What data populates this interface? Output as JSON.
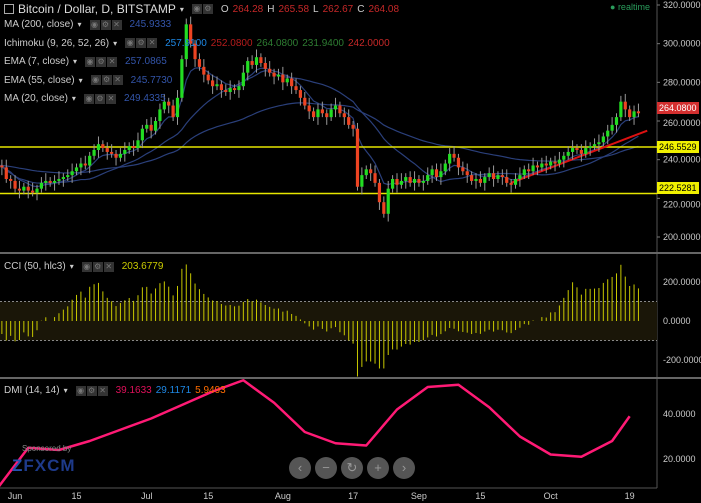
{
  "header": {
    "title": "Bitcoin / Dollar, D, BITSTAMP",
    "o_label": "O",
    "o": "264.28",
    "h_label": "H",
    "h": "265.58",
    "l_label": "L",
    "l": "262.67",
    "c_label": "C",
    "c": "264.08",
    "realtime": "realtime"
  },
  "indicators": [
    {
      "label": "MA (200, close)",
      "values": [
        "245.9333"
      ],
      "colors": [
        "#3355aa"
      ]
    },
    {
      "label": "Ichimoku (9, 26, 52, 26)",
      "values": [
        "257.9100",
        "252.0800",
        "264.0800",
        "231.9400",
        "242.0000"
      ],
      "colors": [
        "#1e88e5",
        "#b71c1c",
        "#2e7d32",
        "#2e7d32",
        "#c62828"
      ]
    },
    {
      "label": "EMA (7, close)",
      "values": [
        "257.0865"
      ],
      "colors": [
        "#3355aa"
      ]
    },
    {
      "label": "EMA (55, close)",
      "values": [
        "245.7730"
      ],
      "colors": [
        "#3355aa"
      ]
    },
    {
      "label": "MA (20, close)",
      "values": [
        "249.4335"
      ],
      "colors": [
        "#3355aa"
      ]
    }
  ],
  "cci": {
    "label": "CCI (50, hlc3)",
    "value": "203.6779",
    "color": "#cccc00"
  },
  "dmi": {
    "label": "DMI (14, 14)",
    "values": [
      "39.1633",
      "29.1171",
      "5.9493"
    ],
    "colors": [
      "#e0105a",
      "#1e88e5",
      "#ff6d00"
    ]
  },
  "price_tags": {
    "last": "264.0800",
    "resistance": "246.5529",
    "support": "222.5281"
  },
  "nav": {
    "prev": "‹",
    "zoom_out": "−",
    "reset": "↻",
    "zoom_in": "+",
    "next": "›"
  },
  "sponsor": {
    "text": "Sponsored by",
    "brand": "FXCM"
  },
  "chart_data": [
    {
      "type": "candlestick",
      "pane": "price",
      "xaxis_ticks": [
        "Jun",
        "15",
        "Jul",
        "15",
        "Aug",
        "17",
        "Sep",
        "15",
        "Oct",
        "19"
      ],
      "yaxis_ticks": [
        "320.0000",
        "300.0000",
        "280.0000",
        "260.0000",
        "240.0000",
        "220.0000",
        "200.0000"
      ],
      "ylim": [
        200,
        320
      ],
      "colors": {
        "up": "#22dd22",
        "down": "#ee4422",
        "levels": "#e6e600",
        "trend": "#dd1111",
        "ma": "#2a3f7a"
      },
      "horizontal_levels": [
        246.5529,
        222.5281
      ],
      "trendline": [
        [
          "Sep 22",
          228
        ],
        [
          "Oct 23",
          255
        ]
      ],
      "first_date": "May 28",
      "close": [
        237,
        236,
        230,
        229,
        225,
        224,
        226,
        224,
        223,
        225,
        228,
        229,
        228,
        229,
        230,
        231,
        232,
        234,
        236,
        238,
        237,
        242,
        245,
        248,
        246,
        244,
        243,
        241,
        243,
        245,
        247,
        246,
        250,
        256,
        258,
        255,
        260,
        266,
        270,
        268,
        262,
        272,
        292,
        310,
        300,
        292,
        288,
        284,
        281,
        278,
        279,
        276,
        275,
        277,
        276,
        278,
        285,
        291,
        289,
        293,
        290,
        287,
        285,
        283,
        284,
        280,
        282,
        278,
        276,
        272,
        268,
        265,
        262,
        266,
        264,
        262,
        266,
        268,
        264,
        262,
        258,
        256,
        226,
        232,
        235,
        233,
        228,
        218,
        212,
        225,
        230,
        227,
        229,
        231,
        228,
        230,
        228,
        229,
        232,
        235,
        231,
        234,
        238,
        243,
        241,
        236,
        234,
        232,
        229,
        230,
        228,
        231,
        233,
        230,
        232,
        231,
        228,
        227,
        230,
        232,
        235,
        234,
        237,
        236,
        238,
        237,
        239,
        238,
        240,
        242,
        244,
        246,
        245,
        243,
        246,
        247,
        248,
        249,
        252,
        255,
        258,
        262,
        270,
        266,
        262,
        265,
        264
      ]
    },
    {
      "type": "bar",
      "pane": "cci",
      "yaxis_ticks": [
        "200.0000",
        "0.0000",
        "-200.0000"
      ],
      "ylim": [
        -300,
        300
      ],
      "bands": [
        100,
        -100
      ]
    },
    {
      "type": "line",
      "pane": "dmi",
      "yaxis_ticks": [
        "40.0000",
        "20.0000"
      ],
      "ylim": [
        5,
        60
      ],
      "adx_days": [
        0,
        7,
        14,
        21,
        28,
        35,
        42,
        49,
        56,
        63,
        70,
        77,
        84,
        91,
        98,
        105,
        112,
        119,
        126,
        133,
        140,
        144
      ],
      "adx": [
        7,
        25,
        24,
        28,
        33,
        38,
        44,
        50,
        55,
        45,
        32,
        27,
        26,
        42,
        52,
        53,
        43,
        30,
        22,
        21,
        28,
        39
      ]
    }
  ]
}
